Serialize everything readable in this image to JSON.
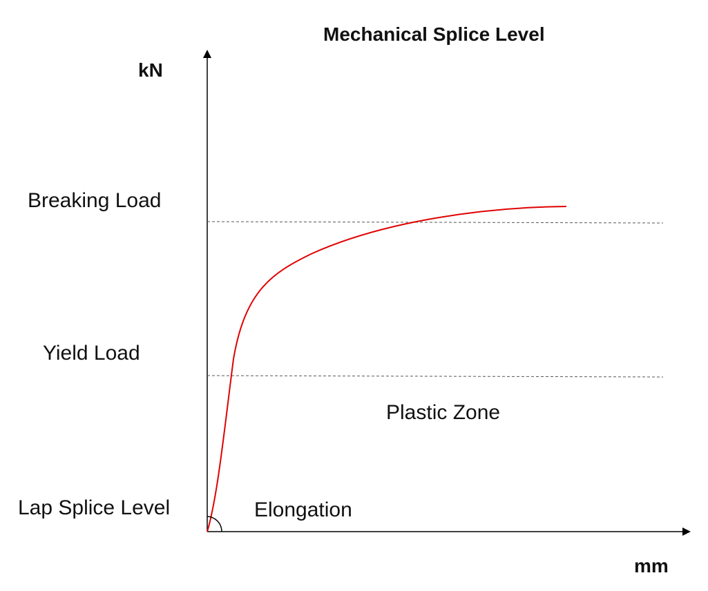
{
  "title": "Mechanical Splice Level",
  "y_axis_label": "kN",
  "x_axis_label": "mm",
  "levels": {
    "breaking": "Breaking Load",
    "yield": "Yield Load",
    "lap_splice": "Lap Splice Level"
  },
  "zones": {
    "plastic": "Plastic Zone",
    "elongation": "Elongation"
  },
  "colors": {
    "curve": "#e00000",
    "axes": "#000000",
    "reference_lines": "#555555"
  }
}
